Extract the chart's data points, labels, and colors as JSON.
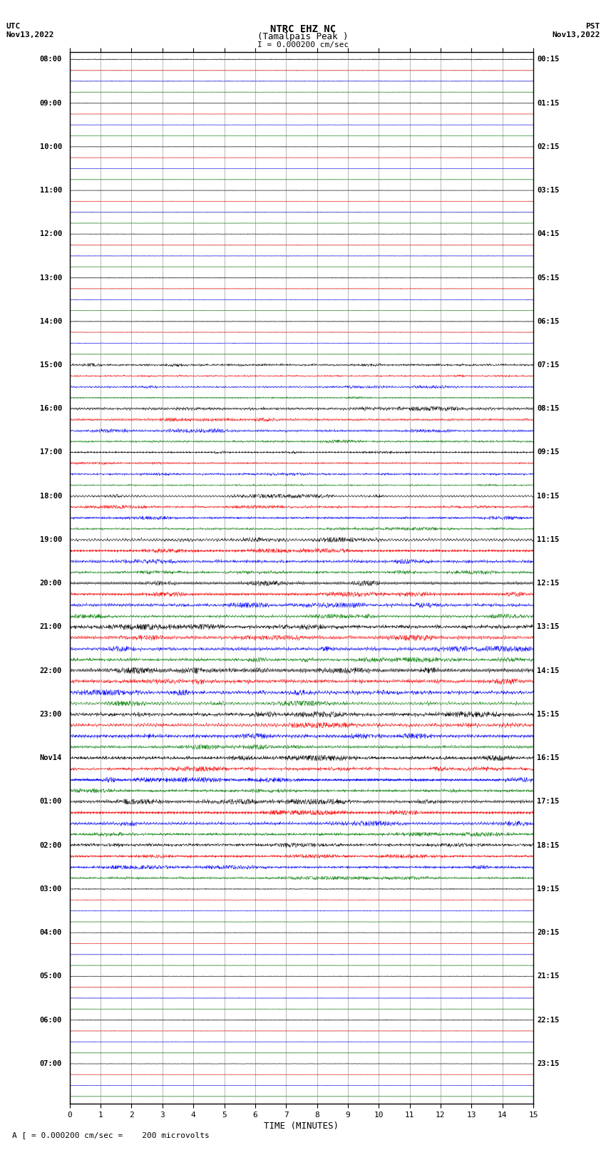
{
  "title_line1": "NTRC EHZ NC",
  "title_line2": "(Tamalpais Peak )",
  "title_line3": "I = 0.000200 cm/sec",
  "left_header_line1": "UTC",
  "left_header_line2": "Nov13,2022",
  "right_header_line1": "PST",
  "right_header_line2": "Nov13,2022",
  "xlabel": "TIME (MINUTES)",
  "footer": "A [ = 0.000200 cm/sec =    200 microvolts",
  "utc_labels": [
    "08:00",
    "09:00",
    "10:00",
    "11:00",
    "12:00",
    "13:00",
    "14:00",
    "15:00",
    "16:00",
    "17:00",
    "18:00",
    "19:00",
    "20:00",
    "21:00",
    "22:00",
    "23:00",
    "Nov14",
    "01:00",
    "02:00",
    "03:00",
    "04:00",
    "05:00",
    "06:00",
    "07:00"
  ],
  "pst_labels": [
    "00:15",
    "01:15",
    "02:15",
    "03:15",
    "04:15",
    "05:15",
    "06:15",
    "07:15",
    "08:15",
    "09:15",
    "10:15",
    "11:15",
    "12:15",
    "13:15",
    "14:15",
    "15:15",
    "16:15",
    "17:15",
    "18:15",
    "19:15",
    "20:15",
    "21:15",
    "22:15",
    "23:15"
  ],
  "n_rows": 96,
  "n_minutes": 15,
  "colors_cycle": [
    "black",
    "red",
    "blue",
    "green"
  ],
  "bg_color": "white",
  "grid_color": "#888888",
  "xmin": 0,
  "xmax": 15,
  "xticks": [
    0,
    1,
    2,
    3,
    4,
    5,
    6,
    7,
    8,
    9,
    10,
    11,
    12,
    13,
    14,
    15
  ],
  "row_activity": [
    0.15,
    0.08,
    0.1,
    0.07,
    0.08,
    0.06,
    0.07,
    0.06,
    0.08,
    0.06,
    0.07,
    0.06,
    0.08,
    0.07,
    0.08,
    0.07,
    0.1,
    0.08,
    0.09,
    0.08,
    0.1,
    0.09,
    0.1,
    0.09,
    0.12,
    0.1,
    0.11,
    0.1,
    0.35,
    0.25,
    0.3,
    0.22,
    0.45,
    0.38,
    0.42,
    0.35,
    0.3,
    0.28,
    0.32,
    0.25,
    0.4,
    0.35,
    0.38,
    0.32,
    0.5,
    0.45,
    0.48,
    0.4,
    0.55,
    0.5,
    0.52,
    0.45,
    0.6,
    0.55,
    0.58,
    0.5,
    0.65,
    0.58,
    0.6,
    0.52,
    0.6,
    0.55,
    0.58,
    0.5,
    0.55,
    0.5,
    0.52,
    0.45,
    0.55,
    0.5,
    0.52,
    0.45,
    0.45,
    0.4,
    0.42,
    0.35,
    0.15,
    0.1,
    0.12,
    0.08,
    0.1,
    0.08,
    0.09,
    0.07,
    0.12,
    0.09,
    0.1,
    0.08,
    0.1,
    0.08,
    0.09,
    0.07,
    0.08,
    0.06,
    0.07,
    0.05
  ]
}
